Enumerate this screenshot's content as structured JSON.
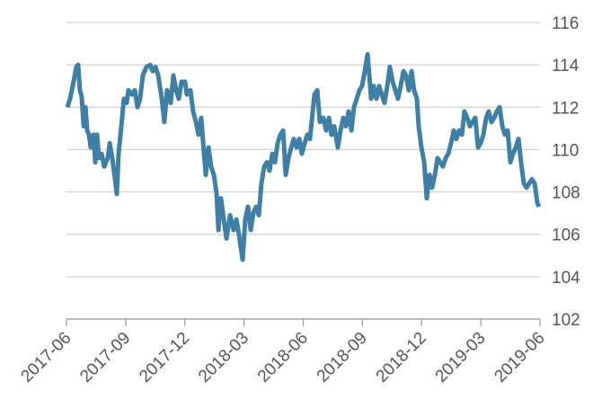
{
  "chart_data": {
    "type": "line",
    "x": [
      0.05,
      0.18,
      0.36,
      0.5,
      0.59,
      0.68,
      0.77,
      0.87,
      0.96,
      1.05,
      1.14,
      1.23,
      1.37,
      1.46,
      1.55,
      1.64,
      1.78,
      1.91,
      2.09,
      2.19,
      2.32,
      2.46,
      2.55,
      2.64,
      2.78,
      2.91,
      3.05,
      3.14,
      3.32,
      3.46,
      3.6,
      3.73,
      3.87,
      4.05,
      4.24,
      4.37,
      4.51,
      4.65,
      4.83,
      4.96,
      5.1,
      5.28,
      5.42,
      5.56,
      5.69,
      5.83,
      6.01,
      6.1,
      6.28,
      6.42,
      6.56,
      6.69,
      6.83,
      6.97,
      7.06,
      7.2,
      7.33,
      7.47,
      7.61,
      7.7,
      7.83,
      7.97,
      8.11,
      8.29,
      8.47,
      8.61,
      8.74,
      8.83,
      8.93,
      9.06,
      9.2,
      9.34,
      9.47,
      9.61,
      9.75,
      9.88,
      10.02,
      10.16,
      10.29,
      10.43,
      10.57,
      10.7,
      10.84,
      10.98,
      11.11,
      11.25,
      11.39,
      11.52,
      11.66,
      11.8,
      11.93,
      12.07,
      12.2,
      12.34,
      12.48,
      12.57,
      12.71,
      12.84,
      13.02,
      13.16,
      13.3,
      13.43,
      13.57,
      13.75,
      13.89,
      14.03,
      14.16,
      14.3,
      14.44,
      14.57,
      14.71,
      14.85,
      14.98,
      15.12,
      15.26,
      15.35,
      15.44,
      15.57,
      15.71,
      15.85,
      15.98,
      16.12,
      16.26,
      16.39,
      16.53,
      16.67,
      16.8,
      16.94,
      17.08,
      17.21,
      17.35,
      17.49,
      17.62,
      17.76,
      17.85,
      17.99,
      18.13,
      18.26,
      18.4,
      18.53,
      18.67,
      18.81,
      18.94,
      19.08,
      19.22,
      19.35,
      19.49,
      19.63,
      19.76,
      19.9,
      20.04,
      20.17,
      20.31,
      20.45,
      20.58,
      20.72,
      20.86,
      20.99,
      21.13,
      21.27,
      21.4,
      21.54,
      21.68,
      21.81,
      21.95,
      22.09,
      22.22,
      22.36,
      22.5,
      22.63,
      22.77,
      22.91,
      23.04,
      23.18,
      23.32,
      23.45,
      23.59,
      23.73,
      23.86,
      23.95
    ],
    "series": [
      {
        "color": "#3f7fa6",
        "values": [
          112.0,
          112.4,
          113.2,
          113.9,
          114.0,
          112.8,
          112.5,
          111.1,
          112.0,
          110.9,
          110.7,
          110.1,
          110.7,
          109.4,
          110.7,
          109.6,
          109.8,
          109.2,
          109.6,
          110.3,
          109.6,
          108.6,
          107.9,
          109.8,
          111.1,
          112.4,
          112.2,
          112.8,
          112.6,
          112.8,
          112.0,
          112.4,
          113.5,
          113.9,
          114.0,
          113.7,
          113.9,
          113.5,
          112.4,
          111.3,
          112.8,
          112.2,
          113.5,
          112.8,
          112.4,
          113.2,
          113.2,
          112.6,
          112.8,
          111.8,
          111.3,
          110.7,
          111.5,
          109.8,
          108.8,
          110.1,
          109.2,
          108.8,
          107.9,
          106.2,
          107.7,
          106.7,
          105.8,
          106.9,
          106.2,
          106.7,
          106.0,
          105.4,
          104.8,
          106.7,
          107.3,
          106.2,
          107.0,
          107.3,
          106.9,
          108.4,
          109.2,
          109.4,
          109.0,
          109.8,
          109.4,
          110.3,
          110.7,
          110.9,
          108.8,
          109.6,
          110.1,
          110.5,
          110.1,
          110.5,
          109.8,
          110.3,
          110.7,
          110.5,
          111.8,
          112.6,
          112.8,
          111.3,
          111.5,
          110.9,
          111.5,
          110.7,
          111.1,
          110.1,
          110.9,
          111.5,
          111.1,
          111.8,
          110.9,
          112.0,
          112.4,
          112.8,
          113.0,
          113.7,
          114.5,
          113.5,
          112.4,
          113.0,
          112.4,
          113.0,
          112.6,
          112.2,
          113.0,
          113.9,
          113.2,
          112.8,
          112.4,
          113.0,
          113.7,
          113.5,
          112.8,
          113.7,
          112.8,
          112.4,
          111.1,
          110.1,
          109.4,
          107.7,
          108.8,
          108.2,
          108.8,
          109.6,
          109.4,
          109.2,
          109.6,
          109.8,
          110.3,
          110.9,
          110.5,
          110.9,
          110.7,
          111.8,
          111.5,
          111.1,
          111.3,
          111.5,
          110.1,
          110.3,
          110.7,
          111.5,
          111.8,
          111.3,
          111.5,
          111.8,
          112.0,
          111.1,
          110.7,
          110.9,
          109.4,
          109.8,
          110.1,
          110.5,
          109.4,
          108.4,
          108.2,
          108.4,
          108.6,
          108.4,
          107.5,
          107.3
        ]
      }
    ],
    "xlim": [
      0,
      24
    ],
    "xticks": [
      {
        "value": 0,
        "label": "2017-06"
      },
      {
        "value": 3,
        "label": "2017-09"
      },
      {
        "value": 6,
        "label": "2017-12"
      },
      {
        "value": 9,
        "label": "2018-03"
      },
      {
        "value": 12,
        "label": "2018-06"
      },
      {
        "value": 15,
        "label": "2018-09"
      },
      {
        "value": 18,
        "label": "2018-12"
      },
      {
        "value": 21,
        "label": "2019-03"
      },
      {
        "value": 24,
        "label": "2019-06"
      }
    ],
    "ylim": [
      102,
      116
    ],
    "yticks": [
      102,
      104,
      106,
      108,
      110,
      112,
      114,
      116
    ],
    "grid": true
  }
}
